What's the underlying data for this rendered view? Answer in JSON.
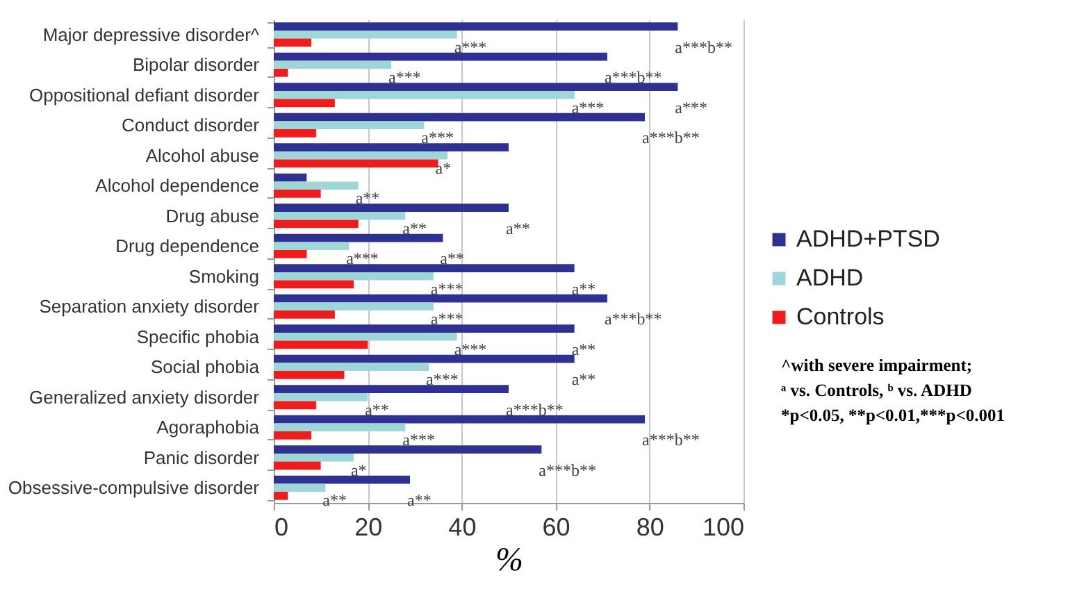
{
  "chart_data": {
    "type": "bar",
    "orientation": "horizontal",
    "xlabel": "%",
    "categories": [
      "Major depressive disorder^",
      "Bipolar disorder",
      "Oppositional defiant disorder",
      "Conduct disorder",
      "Alcohol abuse",
      "Alcohol dependence",
      "Drug abuse",
      "Drug dependence",
      "Smoking",
      "Separation anxiety disorder",
      "Specific phobia",
      "Social phobia",
      "Generalized anxiety disorder",
      "Agoraphobia",
      "Panic disorder",
      "Obsessive-compulsive disorder"
    ],
    "series": [
      {
        "name": "ADHD+PTSD",
        "color": "#2e3192",
        "values": [
          86,
          71,
          86,
          79,
          50,
          7,
          50,
          36,
          64,
          71,
          64,
          64,
          50,
          79,
          57,
          29
        ]
      },
      {
        "name": "ADHD",
        "color": "#9fd6d8",
        "values": [
          39,
          25,
          64,
          32,
          37,
          18,
          28,
          16,
          34,
          34,
          39,
          33,
          20,
          28,
          17,
          11
        ]
      },
      {
        "name": "Controls",
        "color": "#ee1c1c",
        "values": [
          8,
          3,
          13,
          9,
          35,
          10,
          18,
          7,
          17,
          13,
          20,
          15,
          9,
          8,
          10,
          3
        ]
      }
    ],
    "xlim": [
      0,
      100
    ],
    "xticks": [
      0,
      20,
      40,
      60,
      80,
      100
    ],
    "grid": "x",
    "legend": "right",
    "annotations": [
      {
        "text": "a***b**",
        "x": 86,
        "y": "Major depressive disorder^"
      },
      {
        "text": "a***",
        "x": 39,
        "y": "Major depressive disorder^"
      },
      {
        "text": "a***b**",
        "x": 71,
        "y": "Bipolar disorder"
      },
      {
        "text": "a***",
        "x": 25,
        "y": "Bipolar disorder"
      },
      {
        "text": "a***",
        "x": 86,
        "y": "Oppositional defiant disorder"
      },
      {
        "text": "a***",
        "x": 64,
        "y": "Oppositional defiant disorder"
      },
      {
        "text": "a***b**",
        "x": 79,
        "y": "Conduct disorder"
      },
      {
        "text": "a***",
        "x": 32,
        "y": "Conduct disorder"
      },
      {
        "text": "a*",
        "x": 35,
        "y": "Alcohol abuse"
      },
      {
        "text": "a**",
        "x": 18,
        "y": "Alcohol dependence"
      },
      {
        "text": "a**",
        "x": 50,
        "y": "Drug abuse"
      },
      {
        "text": "a**",
        "x": 28,
        "y": "Drug abuse"
      },
      {
        "text": "a**",
        "x": 36,
        "y": "Drug dependence"
      },
      {
        "text": "a***",
        "x": 16,
        "y": "Drug dependence"
      },
      {
        "text": "a**",
        "x": 64,
        "y": "Smoking"
      },
      {
        "text": "a***",
        "x": 34,
        "y": "Smoking"
      },
      {
        "text": "a***b**",
        "x": 71,
        "y": "Separation anxiety disorder"
      },
      {
        "text": "a***",
        "x": 34,
        "y": "Separation anxiety disorder"
      },
      {
        "text": "a**",
        "x": 64,
        "y": "Specific phobia"
      },
      {
        "text": "a***",
        "x": 39,
        "y": "Specific phobia"
      },
      {
        "text": "a**",
        "x": 64,
        "y": "Social phobia"
      },
      {
        "text": "a***",
        "x": 33,
        "y": "Social phobia"
      },
      {
        "text": "a***b**",
        "x": 50,
        "y": "Generalized anxiety disorder"
      },
      {
        "text": "a**",
        "x": 20,
        "y": "Generalized anxiety disorder"
      },
      {
        "text": "a***b**",
        "x": 79,
        "y": "Agoraphobia"
      },
      {
        "text": "a***",
        "x": 28,
        "y": "Agoraphobia"
      },
      {
        "text": "a***b**",
        "x": 57,
        "y": "Panic disorder"
      },
      {
        "text": "a*",
        "x": 17,
        "y": "Panic disorder"
      },
      {
        "text": "a**",
        "x": 29,
        "y": "Obsessive-compulsive disorder"
      },
      {
        "text": "a**",
        "x": 11,
        "y": "Obsessive-compulsive disorder"
      },
      "^with severe impairment;",
      "ᵃ vs. Controls, ᵇ vs. ADHD",
      "*p<0.05, **p<0.01,***p<0.001"
    ]
  }
}
